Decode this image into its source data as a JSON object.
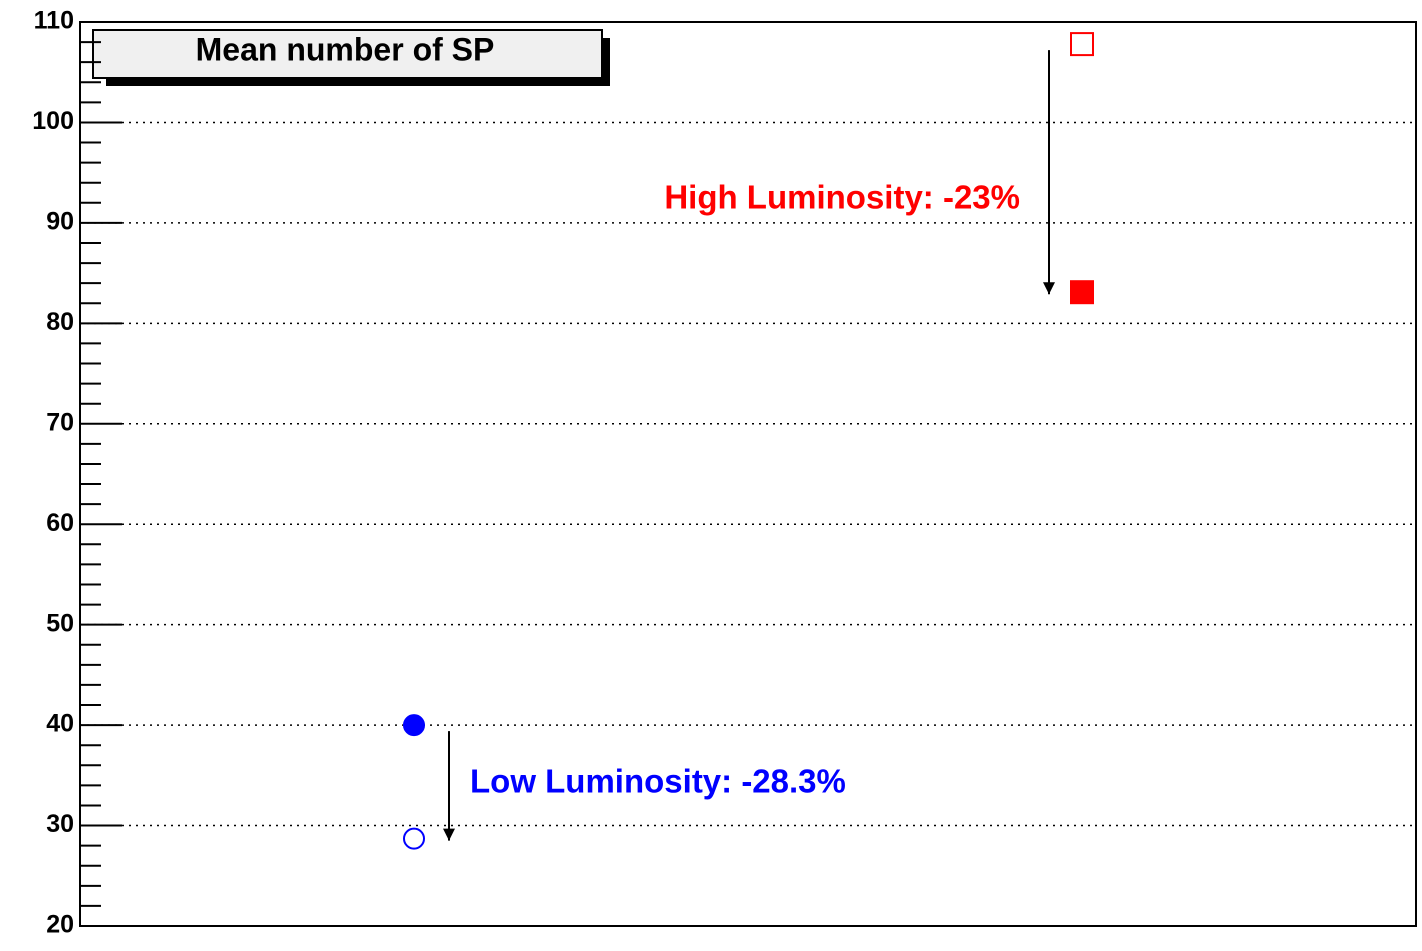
{
  "chart_data": {
    "type": "scatter",
    "title": "Mean number of SP",
    "xlim": [
      0,
      4
    ],
    "ylim": [
      20,
      110
    ],
    "yticks": [
      20,
      30,
      40,
      50,
      60,
      70,
      80,
      90,
      100,
      110
    ],
    "grid": true,
    "series": [
      {
        "color": "#0000ff",
        "marker": "circle",
        "filled": true,
        "x": [
          1
        ],
        "values": [
          40
        ]
      },
      {
        "color": "#0000ff",
        "marker": "circle",
        "filled": false,
        "x": [
          1
        ],
        "values": [
          28.7
        ]
      },
      {
        "color": "#ff0000",
        "marker": "square",
        "filled": false,
        "x": [
          3
        ],
        "values": [
          107.8
        ]
      },
      {
        "color": "#ff0000",
        "marker": "square",
        "filled": true,
        "x": [
          3
        ],
        "values": [
          83.1
        ]
      }
    ],
    "annotations": [
      {
        "text": "High Luminosity: -23%",
        "color": "#ff0000"
      },
      {
        "text": "Low Luminosity: -28.3%",
        "color": "#0000ff"
      }
    ]
  }
}
